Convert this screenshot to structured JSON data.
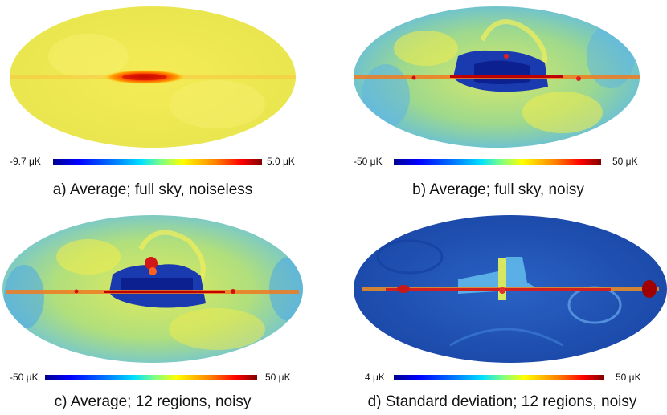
{
  "panels": [
    {
      "id": "a",
      "caption": "a) Average; full sky, noiseless",
      "scale_min": "-9.7 μK",
      "scale_max": "5.0 μK",
      "base_color": "#f2e84a"
    },
    {
      "id": "b",
      "caption": "b) Average; full sky, noisy",
      "scale_min": "-50 μK",
      "scale_max": "50 μK",
      "base_color": "#a9dc86"
    },
    {
      "id": "c",
      "caption": "c) Average; 12 regions, noisy",
      "scale_min": "-50 μK",
      "scale_max": "50 μK",
      "base_color": "#b5de7c"
    },
    {
      "id": "d",
      "caption": "d) Standard deviation; 12 regions, noisy",
      "scale_min": "4 μK",
      "scale_max": "50 μK",
      "base_color": "#1f52b3"
    }
  ]
}
